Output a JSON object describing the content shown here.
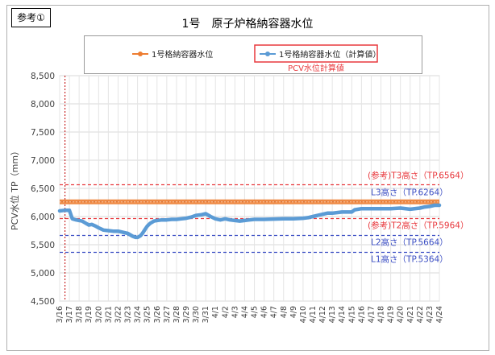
{
  "badge": "参考①",
  "chart_data": {
    "type": "line",
    "title": "1号　原子炉格納容器水位",
    "ylabel": "PCV水位 TP（mm）",
    "xlabel": "",
    "ylim": [
      4500,
      8500
    ],
    "yticks": [
      4500,
      5000,
      5500,
      6000,
      6500,
      7000,
      7500,
      8000,
      8500
    ],
    "ytick_labels": [
      "4,500",
      "5,000",
      "5,500",
      "6,000",
      "6,500",
      "7,000",
      "7,500",
      "8,000",
      "8,500"
    ],
    "x_categories": [
      "3/16",
      "3/17",
      "3/18",
      "3/19",
      "3/20",
      "3/21",
      "3/22",
      "3/23",
      "3/24",
      "3/25",
      "3/26",
      "3/27",
      "3/28",
      "3/29",
      "3/30",
      "3/31",
      "4/1",
      "4/2",
      "4/3",
      "4/4",
      "4/5",
      "4/6",
      "4/7",
      "4/8",
      "4/9",
      "4/10",
      "4/11",
      "4/12",
      "4/13",
      "4/14",
      "4/15",
      "4/16",
      "4/17",
      "4/18",
      "4/19",
      "4/20",
      "4/21",
      "4/22",
      "4/23",
      "4/24"
    ],
    "grid": true,
    "legend_position": "top",
    "legend_note": "PCV水位計算値",
    "series": [
      {
        "name": "1号格納容器水位",
        "color": "#ed7d31",
        "x": [
          0,
          39
        ],
        "values": [
          6260,
          6260
        ]
      },
      {
        "name": "1号格納容器水位（計算値）",
        "color": "#5b9bd5",
        "x": [
          0,
          0.5,
          1.0,
          1.3,
          1.7,
          2.0,
          2.3,
          2.7,
          3.0,
          3.3,
          3.7,
          4.0,
          4.5,
          5.0,
          5.5,
          6.0,
          6.5,
          7.0,
          7.5,
          7.8,
          8.0,
          8.3,
          8.5,
          8.8,
          9.0,
          9.3,
          9.7,
          10.0,
          10.5,
          11.0,
          11.5,
          12.0,
          12.5,
          13.0,
          13.5,
          14.0,
          14.5,
          15.0,
          15.5,
          16.0,
          16.5,
          17.0,
          17.5,
          18.0,
          18.5,
          19.0,
          19.5,
          20.0,
          21.0,
          22.0,
          23.0,
          24.0,
          25.0,
          25.5,
          26.0,
          26.5,
          27.0,
          27.5,
          28.0,
          29.0,
          30.0,
          30.3,
          31.0,
          32.0,
          33.0,
          34.0,
          35.0,
          36.0,
          37.0,
          37.5,
          38.0,
          38.5,
          39.0
        ],
        "values": [
          6100,
          6110,
          6110,
          5960,
          5940,
          5930,
          5920,
          5880,
          5850,
          5860,
          5830,
          5800,
          5760,
          5750,
          5740,
          5740,
          5720,
          5700,
          5650,
          5630,
          5630,
          5660,
          5700,
          5780,
          5830,
          5880,
          5920,
          5930,
          5940,
          5940,
          5950,
          5950,
          5960,
          5970,
          5990,
          6020,
          6030,
          6050,
          6000,
          5960,
          5940,
          5960,
          5940,
          5930,
          5920,
          5930,
          5940,
          5950,
          5950,
          5955,
          5960,
          5960,
          5970,
          5980,
          6000,
          6020,
          6040,
          6060,
          6060,
          6080,
          6080,
          6120,
          6140,
          6140,
          6140,
          6140,
          6150,
          6130,
          6150,
          6170,
          6180,
          6200,
          6200
        ]
      }
    ],
    "reference_lines": [
      {
        "label": "(参考)T3高さ（TP.6564）",
        "value": 6564,
        "color": "#e8383d"
      },
      {
        "label": "L3高さ（TP.6264）",
        "value": 6264,
        "color": "#3c4fc4"
      },
      {
        "label": "(参考)T2高さ（TP.5964）",
        "value": 5964,
        "color": "#e8383d"
      },
      {
        "label": "L2高さ（TP.5664）",
        "value": 5664,
        "color": "#3c4fc4"
      },
      {
        "label": "L1高さ（TP.5364）",
        "value": 5364,
        "color": "#3c4fc4"
      }
    ],
    "event_line": {
      "x": 0.55,
      "color": "#c00000"
    }
  }
}
